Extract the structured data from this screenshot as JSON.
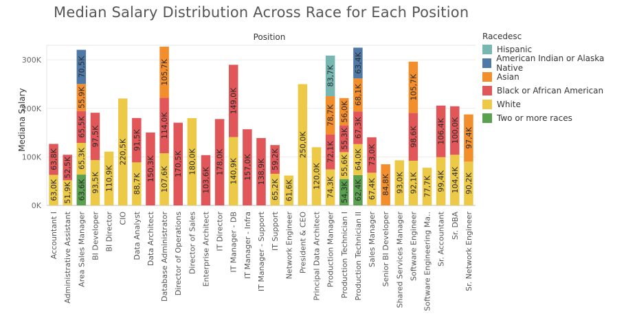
{
  "chart_data": {
    "type": "stacked-bar",
    "title": "Median Salary Distribution Across Race for Each Position",
    "column_header": "Position",
    "ylabel": "Mediana Salary",
    "ylim": [
      0,
      330000
    ],
    "yticks": [
      0,
      100000,
      200000,
      300000
    ],
    "ytick_labels": [
      "0K",
      "100K",
      "200K",
      "300K"
    ],
    "legend_title": "Racedesc",
    "legend": [
      {
        "key": "hispanic",
        "label": "Hispanic",
        "color": "#76b7b2"
      },
      {
        "key": "native",
        "label": "American Indian or Alaska Native",
        "color": "#4e79a7"
      },
      {
        "key": "asian",
        "label": "Asian",
        "color": "#f28e2b"
      },
      {
        "key": "black",
        "label": "Black or African American",
        "color": "#e15759"
      },
      {
        "key": "white",
        "label": "White",
        "color": "#edc948"
      },
      {
        "key": "two",
        "label": "Two or more races",
        "color": "#59a14f"
      }
    ],
    "categories": [
      {
        "name": "Accountant I",
        "segments": [
          {
            "race": "white",
            "value": 63000,
            "label": "63,0K"
          },
          {
            "race": "black",
            "value": 63800,
            "label": "63,8K"
          }
        ]
      },
      {
        "name": "Administrative Assistant",
        "segments": [
          {
            "race": "white",
            "value": 51900,
            "label": "51,9K"
          },
          {
            "race": "black",
            "value": 52500,
            "label": "52,5K"
          }
        ]
      },
      {
        "name": "Area Sales Manager",
        "segments": [
          {
            "race": "two",
            "value": 63600,
            "label": "63,6K"
          },
          {
            "race": "white",
            "value": 65300,
            "label": "65,3K"
          },
          {
            "race": "black",
            "value": 65500,
            "label": "65,5K"
          },
          {
            "race": "asian",
            "value": 55900,
            "label": "55,9K"
          },
          {
            "race": "native",
            "value": 70500,
            "label": "70,5K"
          }
        ]
      },
      {
        "name": "BI Developer",
        "segments": [
          {
            "race": "white",
            "value": 93500,
            "label": "93,5K"
          },
          {
            "race": "black",
            "value": 97500,
            "label": "97,5K"
          }
        ]
      },
      {
        "name": "BI Director",
        "segments": [
          {
            "race": "white",
            "value": 110900,
            "label": "110,9K"
          }
        ]
      },
      {
        "name": "CIO",
        "segments": [
          {
            "race": "white",
            "value": 220500,
            "label": "220,5K"
          }
        ]
      },
      {
        "name": "Data Analyst",
        "segments": [
          {
            "race": "white",
            "value": 88700,
            "label": "88,7K"
          },
          {
            "race": "black",
            "value": 91500,
            "label": "91,5K"
          }
        ]
      },
      {
        "name": "Data Architect",
        "segments": [
          {
            "race": "black",
            "value": 150300,
            "label": "150,3K"
          }
        ]
      },
      {
        "name": "Database Administrator",
        "segments": [
          {
            "race": "white",
            "value": 107600,
            "label": "107,6K"
          },
          {
            "race": "black",
            "value": 114000,
            "label": "114,0K"
          },
          {
            "race": "asian",
            "value": 105700,
            "label": "105,7K"
          }
        ]
      },
      {
        "name": "Director of Operations",
        "segments": [
          {
            "race": "black",
            "value": 170500,
            "label": "170,5K"
          }
        ]
      },
      {
        "name": "Director of Sales",
        "segments": [
          {
            "race": "white",
            "value": 180000,
            "label": "180,0K"
          }
        ]
      },
      {
        "name": "Enterprise Architect",
        "segments": [
          {
            "race": "black",
            "value": 103600,
            "label": "103,6K"
          }
        ]
      },
      {
        "name": "IT Director",
        "segments": [
          {
            "race": "black",
            "value": 178000,
            "label": "178,0K"
          }
        ]
      },
      {
        "name": "IT Manager - DB",
        "segments": [
          {
            "race": "white",
            "value": 140900,
            "label": "140,9K"
          },
          {
            "race": "black",
            "value": 149000,
            "label": "149,0K"
          }
        ]
      },
      {
        "name": "IT Manager - Infra",
        "segments": [
          {
            "race": "black",
            "value": 157000,
            "label": "157,0K"
          }
        ]
      },
      {
        "name": "IT Manager - Support",
        "segments": [
          {
            "race": "black",
            "value": 138900,
            "label": "138,9K"
          }
        ]
      },
      {
        "name": "IT Support",
        "segments": [
          {
            "race": "white",
            "value": 65200,
            "label": "65,2K"
          },
          {
            "race": "black",
            "value": 59200,
            "label": "59,2K"
          }
        ]
      },
      {
        "name": "Network Engineer",
        "segments": [
          {
            "race": "white",
            "value": 61600,
            "label": "61,6K"
          }
        ]
      },
      {
        "name": "President & CEO",
        "segments": [
          {
            "race": "white",
            "value": 250000,
            "label": "250,0K"
          }
        ]
      },
      {
        "name": "Principal Data Architect",
        "segments": [
          {
            "race": "white",
            "value": 120000,
            "label": "120,0K"
          }
        ]
      },
      {
        "name": "Production Manager",
        "segments": [
          {
            "race": "white",
            "value": 74300,
            "label": "74,3K"
          },
          {
            "race": "black",
            "value": 72100,
            "label": "72,1K"
          },
          {
            "race": "asian",
            "value": 78700,
            "label": "78,7K"
          },
          {
            "race": "hispanic",
            "value": 83700,
            "label": "83,7K"
          }
        ]
      },
      {
        "name": "Production Technician I",
        "segments": [
          {
            "race": "two",
            "value": 54300,
            "label": "54,3K"
          },
          {
            "race": "white",
            "value": 55600,
            "label": "55,6K"
          },
          {
            "race": "black",
            "value": 55300,
            "label": "55,3K"
          },
          {
            "race": "asian",
            "value": 56000,
            "label": "56,0K"
          }
        ]
      },
      {
        "name": "Production Technician II",
        "segments": [
          {
            "race": "two",
            "value": 62400,
            "label": "62,4K"
          },
          {
            "race": "white",
            "value": 64000,
            "label": "64,0K"
          },
          {
            "race": "black",
            "value": 67300,
            "label": "67,3K"
          },
          {
            "race": "asian",
            "value": 68100,
            "label": "68,1K"
          },
          {
            "race": "native",
            "value": 63400,
            "label": "63,4K"
          }
        ]
      },
      {
        "name": "Sales Manager",
        "segments": [
          {
            "race": "white",
            "value": 67400,
            "label": "67,4K"
          },
          {
            "race": "black",
            "value": 73000,
            "label": "73,0K"
          }
        ]
      },
      {
        "name": "Senior BI Developer",
        "segments": [
          {
            "race": "asian",
            "value": 84800,
            "label": "84,8K"
          }
        ]
      },
      {
        "name": "Shared Services Manager",
        "segments": [
          {
            "race": "white",
            "value": 93000,
            "label": "93,0K"
          }
        ]
      },
      {
        "name": "Software Engineer",
        "segments": [
          {
            "race": "white",
            "value": 92100,
            "label": "92,1K"
          },
          {
            "race": "black",
            "value": 98600,
            "label": "98,6K"
          },
          {
            "race": "asian",
            "value": 105700,
            "label": "105,7K"
          }
        ]
      },
      {
        "name": "Software Engineering Ma..",
        "segments": [
          {
            "race": "white",
            "value": 77700,
            "label": "77,7K"
          }
        ]
      },
      {
        "name": "Sr. Accountant",
        "segments": [
          {
            "race": "white",
            "value": 99400,
            "label": "99,4K"
          },
          {
            "race": "black",
            "value": 106400,
            "label": "106,4K"
          }
        ]
      },
      {
        "name": "Sr. DBA",
        "segments": [
          {
            "race": "white",
            "value": 104400,
            "label": "104,4K"
          },
          {
            "race": "black",
            "value": 100000,
            "label": "100,0K"
          }
        ]
      },
      {
        "name": "Sr. Network Engineer",
        "segments": [
          {
            "race": "white",
            "value": 90200,
            "label": "90,2K"
          },
          {
            "race": "asian",
            "value": 97400,
            "label": "97,4K"
          }
        ]
      }
    ]
  }
}
